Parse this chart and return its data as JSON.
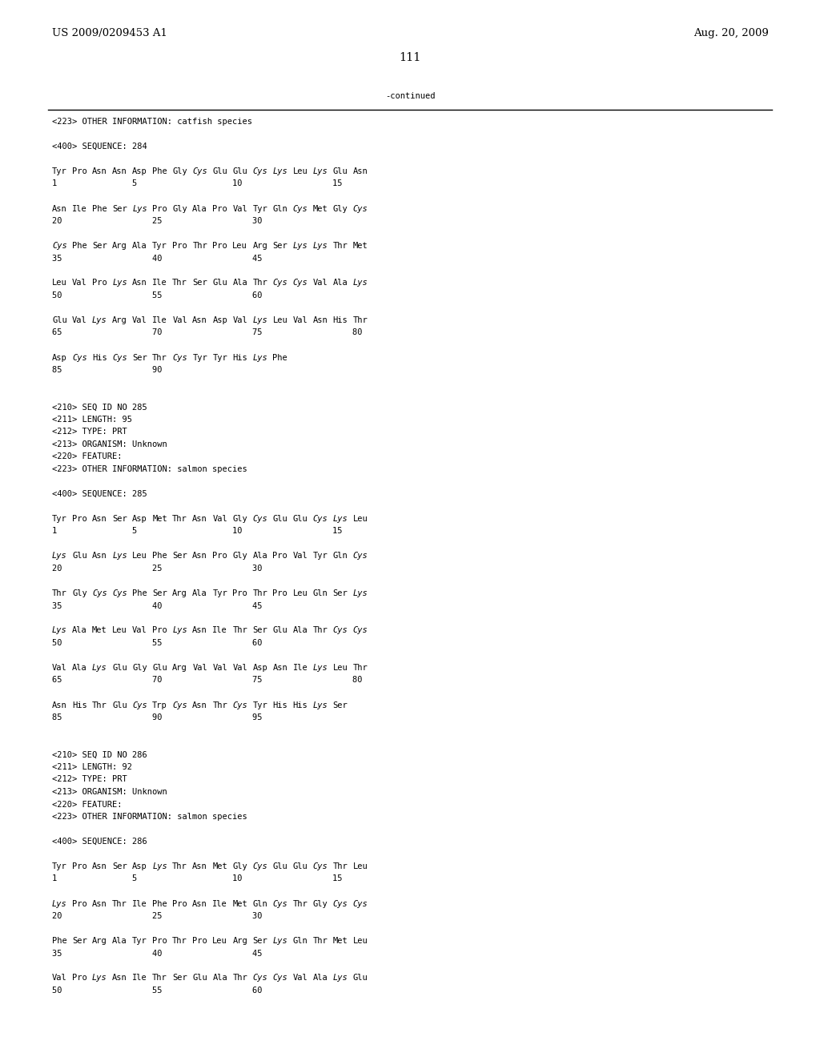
{
  "header_left": "US 2009/0209453 A1",
  "header_right": "Aug. 20, 2009",
  "page_number": "111",
  "continued_text": "-continued",
  "background_color": "#ffffff",
  "text_color": "#000000",
  "font_size_header": 9.5,
  "font_size_body": 7.5,
  "font_size_page": 10.5,
  "lines": [
    "<223> OTHER INFORMATION: catfish species",
    "",
    "<400> SEQUENCE: 284",
    "",
    "Tyr Pro Asn Asn Asp Phe Gly Cys Glu Glu Cys Lys Leu Lys Glu Asn",
    "1               5                   10                  15",
    "",
    "Asn Ile Phe Ser Lys Pro Gly Ala Pro Val Tyr Gln Cys Met Gly Cys",
    "20                  25                  30",
    "",
    "Cys Phe Ser Arg Ala Tyr Pro Thr Pro Leu Arg Ser Lys Lys Thr Met",
    "35                  40                  45",
    "",
    "Leu Val Pro Lys Asn Ile Thr Ser Glu Ala Thr Cys Cys Val Ala Lys",
    "50                  55                  60",
    "",
    "Glu Val Lys Arg Val Ile Val Asn Asp Val Lys Leu Val Asn His Thr",
    "65                  70                  75                  80",
    "",
    "Asp Cys His Cys Ser Thr Cys Tyr Tyr His Lys Phe",
    "85                  90",
    "",
    "",
    "<210> SEQ ID NO 285",
    "<211> LENGTH: 95",
    "<212> TYPE: PRT",
    "<213> ORGANISM: Unknown",
    "<220> FEATURE:",
    "<223> OTHER INFORMATION: salmon species",
    "",
    "<400> SEQUENCE: 285",
    "",
    "Tyr Pro Asn Ser Asp Met Thr Asn Val Gly Cys Glu Glu Cys Lys Leu",
    "1               5                   10                  15",
    "",
    "Lys Glu Asn Lys Leu Phe Ser Asn Pro Gly Ala Pro Val Tyr Gln Cys",
    "20                  25                  30",
    "",
    "Thr Gly Cys Cys Phe Ser Arg Ala Tyr Pro Thr Pro Leu Gln Ser Lys",
    "35                  40                  45",
    "",
    "Lys Ala Met Leu Val Pro Lys Asn Ile Thr Ser Glu Ala Thr Cys Cys",
    "50                  55                  60",
    "",
    "Val Ala Lys Glu Gly Glu Arg Val Val Val Asp Asn Ile Lys Leu Thr",
    "65                  70                  75                  80",
    "",
    "Asn His Thr Glu Cys Trp Cys Asn Thr Cys Tyr His His Lys Ser",
    "85                  90                  95",
    "",
    "",
    "<210> SEQ ID NO 286",
    "<211> LENGTH: 92",
    "<212> TYPE: PRT",
    "<213> ORGANISM: Unknown",
    "<220> FEATURE:",
    "<223> OTHER INFORMATION: salmon species",
    "",
    "<400> SEQUENCE: 286",
    "",
    "Tyr Pro Asn Ser Asp Lys Thr Asn Met Gly Cys Glu Glu Cys Thr Leu",
    "1               5                   10                  15",
    "",
    "Lys Pro Asn Thr Ile Phe Pro Asn Ile Met Gln Cys Thr Gly Cys Cys",
    "20                  25                  30",
    "",
    "Phe Ser Arg Ala Tyr Pro Thr Pro Leu Arg Ser Lys Gln Thr Met Leu",
    "35                  40                  45",
    "",
    "Val Pro Lys Asn Ile Thr Ser Glu Ala Thr Cys Cys Val Ala Lys Glu",
    "50                  55                  60"
  ],
  "italic_words": [
    "Cys",
    "Lys"
  ],
  "aa_codes": [
    "Ala",
    "Arg",
    "Asn",
    "Asp",
    "Cys",
    "Glu",
    "Gln",
    "Gly",
    "His",
    "Ile",
    "Leu",
    "Lys",
    "Met",
    "Phe",
    "Pro",
    "Ser",
    "Thr",
    "Trp",
    "Tyr",
    "Val"
  ]
}
